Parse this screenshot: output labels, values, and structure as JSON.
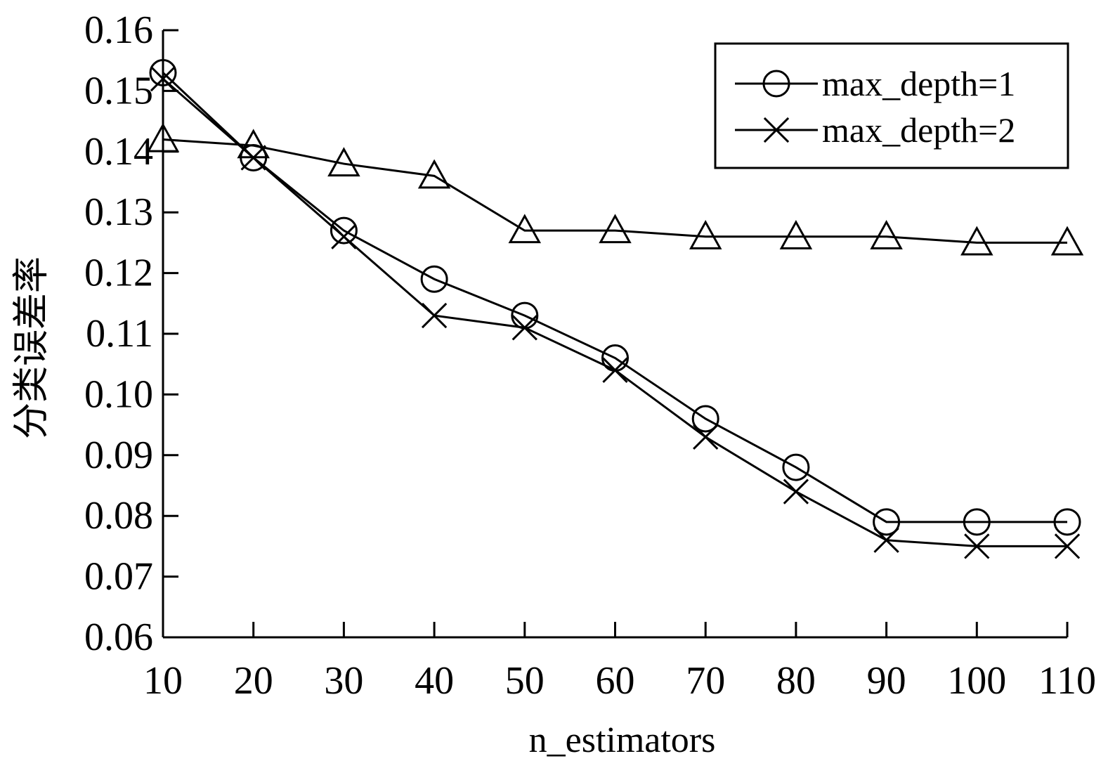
{
  "chart_data": {
    "type": "line",
    "title": "",
    "xlabel": "n_estimators",
    "ylabel": "分类误差率",
    "x": [
      10,
      20,
      30,
      40,
      50,
      60,
      70,
      80,
      90,
      100,
      110
    ],
    "x_tick_labels": [
      "10",
      "20",
      "30",
      "40",
      "50",
      "60",
      "70",
      "80",
      "90",
      "100",
      "110"
    ],
    "y_tick_labels": [
      "0.06",
      "0.07",
      "0.08",
      "0.09",
      "0.10",
      "0.11",
      "0.12",
      "0.13",
      "0.14",
      "0.15",
      "0.16"
    ],
    "xlim": [
      10,
      110
    ],
    "ylim": [
      0.06,
      0.16
    ],
    "grid": false,
    "legend_position": "top-right",
    "series": [
      {
        "name": "max_depth=1",
        "marker": "circle",
        "values": [
          0.153,
          0.139,
          0.127,
          0.119,
          0.113,
          0.106,
          0.096,
          0.088,
          0.079,
          0.079,
          0.079
        ]
      },
      {
        "name": "max_depth=2",
        "marker": "cross",
        "values": [
          0.152,
          0.139,
          0.126,
          0.113,
          0.111,
          0.104,
          0.093,
          0.084,
          0.076,
          0.075,
          0.075
        ]
      },
      {
        "marker": "triangle",
        "values": [
          0.142,
          0.141,
          0.138,
          0.136,
          0.127,
          0.127,
          0.126,
          0.126,
          0.126,
          0.125,
          0.125
        ]
      }
    ]
  }
}
